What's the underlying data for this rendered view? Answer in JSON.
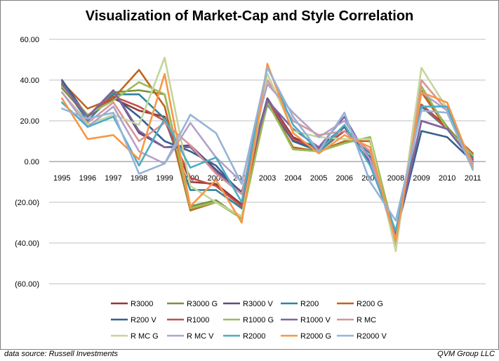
{
  "chart_data": {
    "type": "line",
    "title": "Visualization  of Market-Cap  and Style Correlation",
    "xlabel": "",
    "ylabel": "",
    "ylim": [
      -60,
      60
    ],
    "yticks": [
      60,
      40,
      20,
      0,
      -20,
      -40,
      -60
    ],
    "ytick_labels": [
      "60.00",
      "40.00",
      "20.00",
      "0.00",
      "(20.00)",
      "(40.00)",
      "(60.00)"
    ],
    "grid": true,
    "legend_position": "bottom",
    "categories": [
      "1995",
      "1996",
      "1997",
      "1998",
      "1999",
      "2000",
      "2001",
      "2002",
      "2003",
      "2004",
      "2005",
      "2006",
      "2007",
      "2008",
      "2009",
      "2010",
      "2011"
    ],
    "series": [
      {
        "name": "R3000",
        "color": "#953735",
        "values": [
          37,
          22,
          31,
          25,
          22,
          -10,
          -11,
          -21,
          31,
          12,
          6,
          15,
          5,
          -37,
          28,
          17,
          1
        ]
      },
      {
        "name": "R3000 G",
        "color": "#77933c",
        "values": [
          36,
          22,
          34,
          35,
          33,
          -22,
          -19,
          -28,
          30,
          6,
          5,
          9,
          12,
          -38,
          35,
          17,
          3
        ]
      },
      {
        "name": "R3000 V",
        "color": "#604a7b",
        "values": [
          38,
          22,
          35,
          14,
          7,
          8,
          -4,
          -15,
          31,
          11,
          7,
          17,
          -1,
          -36,
          20,
          16,
          0
        ]
      },
      {
        "name": "R200",
        "color": "#31859c",
        "values": [
          38,
          20,
          33,
          33,
          21,
          -14,
          -14,
          -23,
          28,
          10,
          5,
          15,
          4,
          -35,
          27,
          16,
          2
        ]
      },
      {
        "name": "R200 G",
        "color": "#c0651f",
        "values": [
          39,
          26,
          31,
          45,
          27,
          -24,
          -20,
          -27,
          29,
          7,
          5,
          10,
          10,
          -37,
          34,
          16,
          4
        ]
      },
      {
        "name": "R200 V",
        "color": "#376092",
        "values": [
          40,
          22,
          32,
          22,
          10,
          5,
          -2,
          -16,
          30,
          10,
          6,
          17,
          2,
          -36,
          15,
          12,
          0
        ]
      },
      {
        "name": "R1000",
        "color": "#c0504d",
        "values": [
          37,
          22,
          32,
          27,
          20,
          -8,
          -12,
          -22,
          30,
          11,
          6,
          15,
          5,
          -37,
          28,
          16,
          1
        ]
      },
      {
        "name": "R1000 G",
        "color": "#9bbb59",
        "values": [
          37,
          23,
          30,
          39,
          33,
          -23,
          -20,
          -28,
          29,
          6,
          5,
          9,
          12,
          -38,
          37,
          16,
          3
        ]
      },
      {
        "name": "R1000 V",
        "color": "#8064a2",
        "values": [
          38,
          22,
          35,
          15,
          7,
          7,
          -5,
          -16,
          30,
          16,
          7,
          22,
          0,
          -37,
          20,
          16,
          0
        ]
      },
      {
        "name": "R MC",
        "color": "#d99694",
        "values": [
          34,
          19,
          29,
          10,
          19,
          8,
          -6,
          -16,
          40,
          20,
          13,
          15,
          5,
          -41,
          40,
          25,
          -2
        ]
      },
      {
        "name": "R MC G",
        "color": "#c3d69b",
        "values": [
          34,
          18,
          23,
          18,
          51,
          -12,
          -20,
          -27,
          43,
          15,
          12,
          11,
          11,
          -44,
          46,
          26,
          -1
        ]
      },
      {
        "name": "R MC V",
        "color": "#b3a2c7",
        "values": [
          34,
          17,
          27,
          5,
          -1,
          19,
          2,
          -10,
          38,
          24,
          12,
          20,
          1,
          -38,
          34,
          25,
          -1
        ]
      },
      {
        "name": "R2000",
        "color": "#4bacc6",
        "values": [
          29,
          17,
          22,
          -2,
          21,
          -3,
          2,
          -20,
          47,
          18,
          5,
          18,
          -2,
          -34,
          27,
          27,
          -4
        ]
      },
      {
        "name": "R2000 G",
        "color": "#f79646",
        "values": [
          31,
          11,
          13,
          1,
          43,
          -22,
          -9,
          -30,
          48,
          14,
          4,
          13,
          7,
          -39,
          34,
          29,
          -3
        ]
      },
      {
        "name": "R2000 V",
        "color": "#95b3d7",
        "values": [
          26,
          21,
          24,
          -6,
          -1,
          23,
          14,
          -11,
          46,
          22,
          5,
          24,
          -10,
          -29,
          25,
          24,
          -4
        ]
      }
    ]
  },
  "footer": {
    "source": "data source: Russell Investments",
    "credit": "QVM Group LLC"
  }
}
